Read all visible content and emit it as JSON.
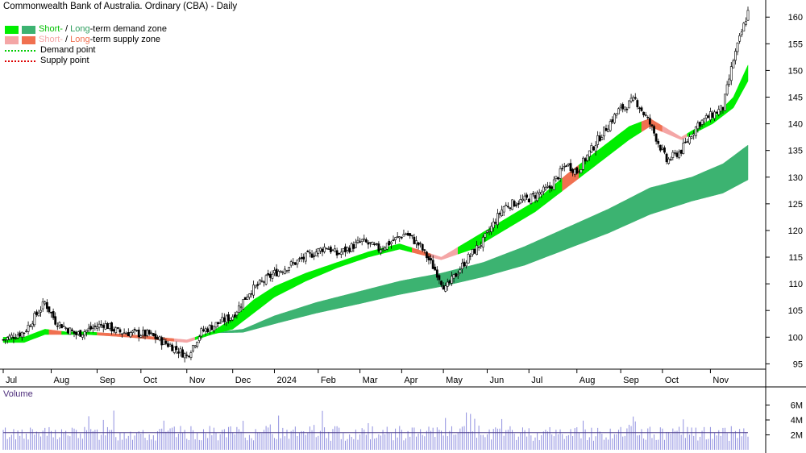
{
  "title": "Commonwealth Bank of Australia. Ordinary (CBA) - Daily",
  "legend": {
    "demand_zone": {
      "short": "Short-",
      "sep": " / ",
      "long": "Long",
      "rest": "-term demand zone"
    },
    "supply_zone": {
      "short": "Short-",
      "sep": " / ",
      "long": "Long",
      "rest": "-term supply zone"
    },
    "demand_point": "Demand point",
    "supply_point": "Supply point"
  },
  "volume_label": "Volume",
  "colors": {
    "short_demand": "#00ee00",
    "long_demand": "#3cb371",
    "short_supply": "#f4a6a6",
    "long_supply": "#f07050",
    "demand_point": "#00cc00",
    "supply_point": "#dd0000",
    "candle": "#000000",
    "volume_bar": "#9090e0",
    "volume_avg": "#4b3b8a",
    "axis_text": "#000000"
  },
  "chart_data": {
    "type": "candlestick",
    "title": "Commonwealth Bank of Australia. Ordinary (CBA) - Daily",
    "ylim": [
      94,
      162
    ],
    "y_ticks": [
      95,
      100,
      105,
      110,
      115,
      120,
      125,
      130,
      135,
      140,
      145,
      150,
      155,
      160
    ],
    "x_tick_labels": [
      "Jul",
      "Aug",
      "Sep",
      "Oct",
      "Nov",
      "Dec",
      "2024",
      "Feb",
      "Mar",
      "Apr",
      "May",
      "Jun",
      "Jul",
      "Aug",
      "Sep",
      "Oct",
      "Nov"
    ],
    "x_tick_days": [
      0,
      23,
      45,
      66,
      88,
      110,
      130,
      151,
      171,
      191,
      211,
      232,
      252,
      275,
      296,
      316,
      339
    ],
    "n_days": 357,
    "price_path": [
      [
        0,
        99.5
      ],
      [
        10,
        101
      ],
      [
        20,
        106.5
      ],
      [
        25,
        103
      ],
      [
        35,
        100.5
      ],
      [
        48,
        102.5
      ],
      [
        55,
        101
      ],
      [
        70,
        100.5
      ],
      [
        82,
        98
      ],
      [
        88,
        96.5
      ],
      [
        95,
        101
      ],
      [
        110,
        104
      ],
      [
        118,
        108.5
      ],
      [
        130,
        112
      ],
      [
        140,
        114
      ],
      [
        155,
        117
      ],
      [
        160,
        115.5
      ],
      [
        172,
        118
      ],
      [
        180,
        116.5
      ],
      [
        193,
        119.5
      ],
      [
        200,
        117
      ],
      [
        208,
        112
      ],
      [
        212,
        109
      ],
      [
        222,
        114.5
      ],
      [
        230,
        118
      ],
      [
        240,
        124.5
      ],
      [
        252,
        126
      ],
      [
        262,
        128
      ],
      [
        270,
        132.5
      ],
      [
        275,
        131
      ],
      [
        285,
        137
      ],
      [
        295,
        142.5
      ],
      [
        303,
        144.5
      ],
      [
        310,
        140
      ],
      [
        318,
        133
      ],
      [
        325,
        135
      ],
      [
        333,
        140
      ],
      [
        345,
        143
      ],
      [
        350,
        152
      ],
      [
        357,
        161
      ]
    ],
    "short_demand_upper": [
      [
        0,
        100
      ],
      [
        10,
        100
      ],
      [
        20,
        101.5
      ],
      [
        30,
        101
      ],
      [
        40,
        101
      ],
      [
        60,
        100.5
      ],
      [
        88,
        99.5
      ],
      [
        100,
        101
      ],
      [
        110,
        103.5
      ],
      [
        120,
        107
      ],
      [
        130,
        109.5
      ],
      [
        145,
        112
      ],
      [
        160,
        114
      ],
      [
        175,
        116
      ],
      [
        190,
        117.5
      ],
      [
        210,
        115
      ],
      [
        225,
        118.5
      ],
      [
        240,
        122
      ],
      [
        255,
        125.5
      ],
      [
        270,
        130.5
      ],
      [
        285,
        135
      ],
      [
        300,
        139.5
      ],
      [
        310,
        141
      ],
      [
        325,
        137.5
      ],
      [
        340,
        141
      ],
      [
        350,
        145
      ],
      [
        357,
        151
      ]
    ],
    "short_demand_lower": [
      [
        0,
        99
      ],
      [
        10,
        99
      ],
      [
        20,
        100.5
      ],
      [
        30,
        100.5
      ],
      [
        40,
        100.5
      ],
      [
        60,
        100
      ],
      [
        88,
        99
      ],
      [
        100,
        100.5
      ],
      [
        110,
        101.5
      ],
      [
        120,
        104.5
      ],
      [
        130,
        107.5
      ],
      [
        145,
        110.5
      ],
      [
        160,
        113
      ],
      [
        175,
        115
      ],
      [
        190,
        116.5
      ],
      [
        210,
        114.5
      ],
      [
        225,
        116.5
      ],
      [
        240,
        120
      ],
      [
        255,
        123.5
      ],
      [
        270,
        128
      ],
      [
        285,
        132.5
      ],
      [
        300,
        137
      ],
      [
        310,
        139.5
      ],
      [
        325,
        137
      ],
      [
        340,
        140
      ],
      [
        350,
        143
      ],
      [
        357,
        148
      ]
    ],
    "long_demand_upper": [
      [
        100,
        100.8
      ],
      [
        115,
        101.5
      ],
      [
        130,
        104
      ],
      [
        150,
        106.5
      ],
      [
        170,
        108.5
      ],
      [
        190,
        110.5
      ],
      [
        210,
        112
      ],
      [
        230,
        114
      ],
      [
        250,
        117
      ],
      [
        270,
        120.5
      ],
      [
        290,
        124
      ],
      [
        310,
        128
      ],
      [
        330,
        130
      ],
      [
        345,
        132.5
      ],
      [
        357,
        136
      ]
    ],
    "long_demand_lower": [
      [
        100,
        100.8
      ],
      [
        115,
        100.9
      ],
      [
        130,
        102.5
      ],
      [
        150,
        104.5
      ],
      [
        170,
        106.2
      ],
      [
        190,
        108
      ],
      [
        210,
        109.5
      ],
      [
        230,
        111.3
      ],
      [
        250,
        113.5
      ],
      [
        270,
        116.5
      ],
      [
        290,
        119.5
      ],
      [
        310,
        123
      ],
      [
        330,
        125.5
      ],
      [
        345,
        127
      ],
      [
        357,
        129.5
      ]
    ],
    "volume_ylim": [
      0,
      8
    ],
    "volume_ticks": [
      2,
      4,
      6
    ],
    "volume_tick_labels": [
      "2M",
      "4M",
      "6M"
    ],
    "volume_unit": "M",
    "volume_avg": 2.3
  }
}
